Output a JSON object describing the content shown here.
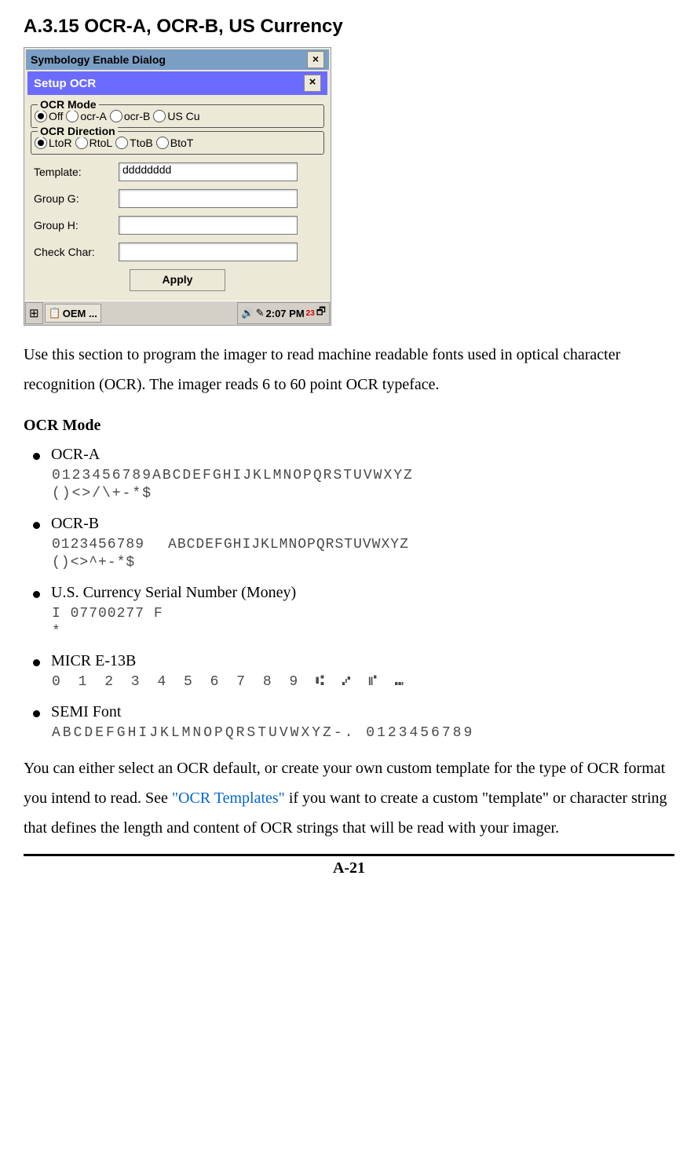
{
  "heading": "A.3.15 OCR-A, OCR-B, US Currency",
  "screenshot": {
    "back_title": "Symbology Enable Dialog",
    "title": "Setup OCR",
    "close_x": "×",
    "fieldset1": {
      "legend": "OCR Mode",
      "options": [
        {
          "label": "Off",
          "checked": true
        },
        {
          "label": "ocr-A",
          "checked": false
        },
        {
          "label": "ocr-B",
          "checked": false
        },
        {
          "label": "US Cu",
          "checked": false
        }
      ]
    },
    "fieldset2": {
      "legend": "OCR Direction",
      "options": [
        {
          "label": "LtoR",
          "checked": true
        },
        {
          "label": "RtoL",
          "checked": false
        },
        {
          "label": "TtoB",
          "checked": false
        },
        {
          "label": "BtoT",
          "checked": false
        }
      ]
    },
    "fields": {
      "template_label": "Template:",
      "template_value": "dddddddd",
      "groupg_label": "Group G:",
      "groupg_value": "",
      "grouph_label": "Group H:",
      "grouph_value": "",
      "checkchar_label": "Check Char:",
      "checkchar_value": ""
    },
    "apply_label": "Apply",
    "taskbar": {
      "oem": "OEM ...",
      "time": "2:07 PM",
      "badge": "23"
    }
  },
  "para1": "Use this section to program the imager to read machine readable fonts used in optical character recognition (OCR). The imager reads 6 to 60 point OCR typeface.",
  "subhead1": "OCR Mode",
  "bullets": {
    "ocra_label": "OCR-A",
    "ocra_sample_l1": "0123456789ABCDEFGHIJKLMNOPQRSTUVWXYZ",
    "ocra_sample_l2": "()<>/\\+-*$",
    "ocrb_label": "OCR-B",
    "ocrb_sample_l1a": "0123456789",
    "ocrb_sample_l1b": "ABCDEFGHIJKLMNOPQRSTUVWXYZ",
    "ocrb_sample_l2": "()<>^+-*$",
    "uscur_label": "U.S. Currency Serial Number (Money)",
    "uscur_sample_l1": "I 07700277 F",
    "uscur_sample_l2": "*",
    "micr_label": "MICR E-13B",
    "micr_sample": "0 1 2 3 4 5 6 7 8 9 ⑆ ⑇ ⑈ ⑉",
    "semi_label": "SEMI Font",
    "semi_sample": "ABCDEFGHIJKLMNOPQRSTUVWXYZ-. 0123456789"
  },
  "para2_a": "You can either select an OCR default, or create your own custom template for the type of OCR format you intend to read. See ",
  "para2_link": "\"OCR Templates\"",
  "para2_b": " if you want to create a custom \"template\" or character string that defines the length and content of OCR strings that will be read with your imager.",
  "page_num": "A-21"
}
